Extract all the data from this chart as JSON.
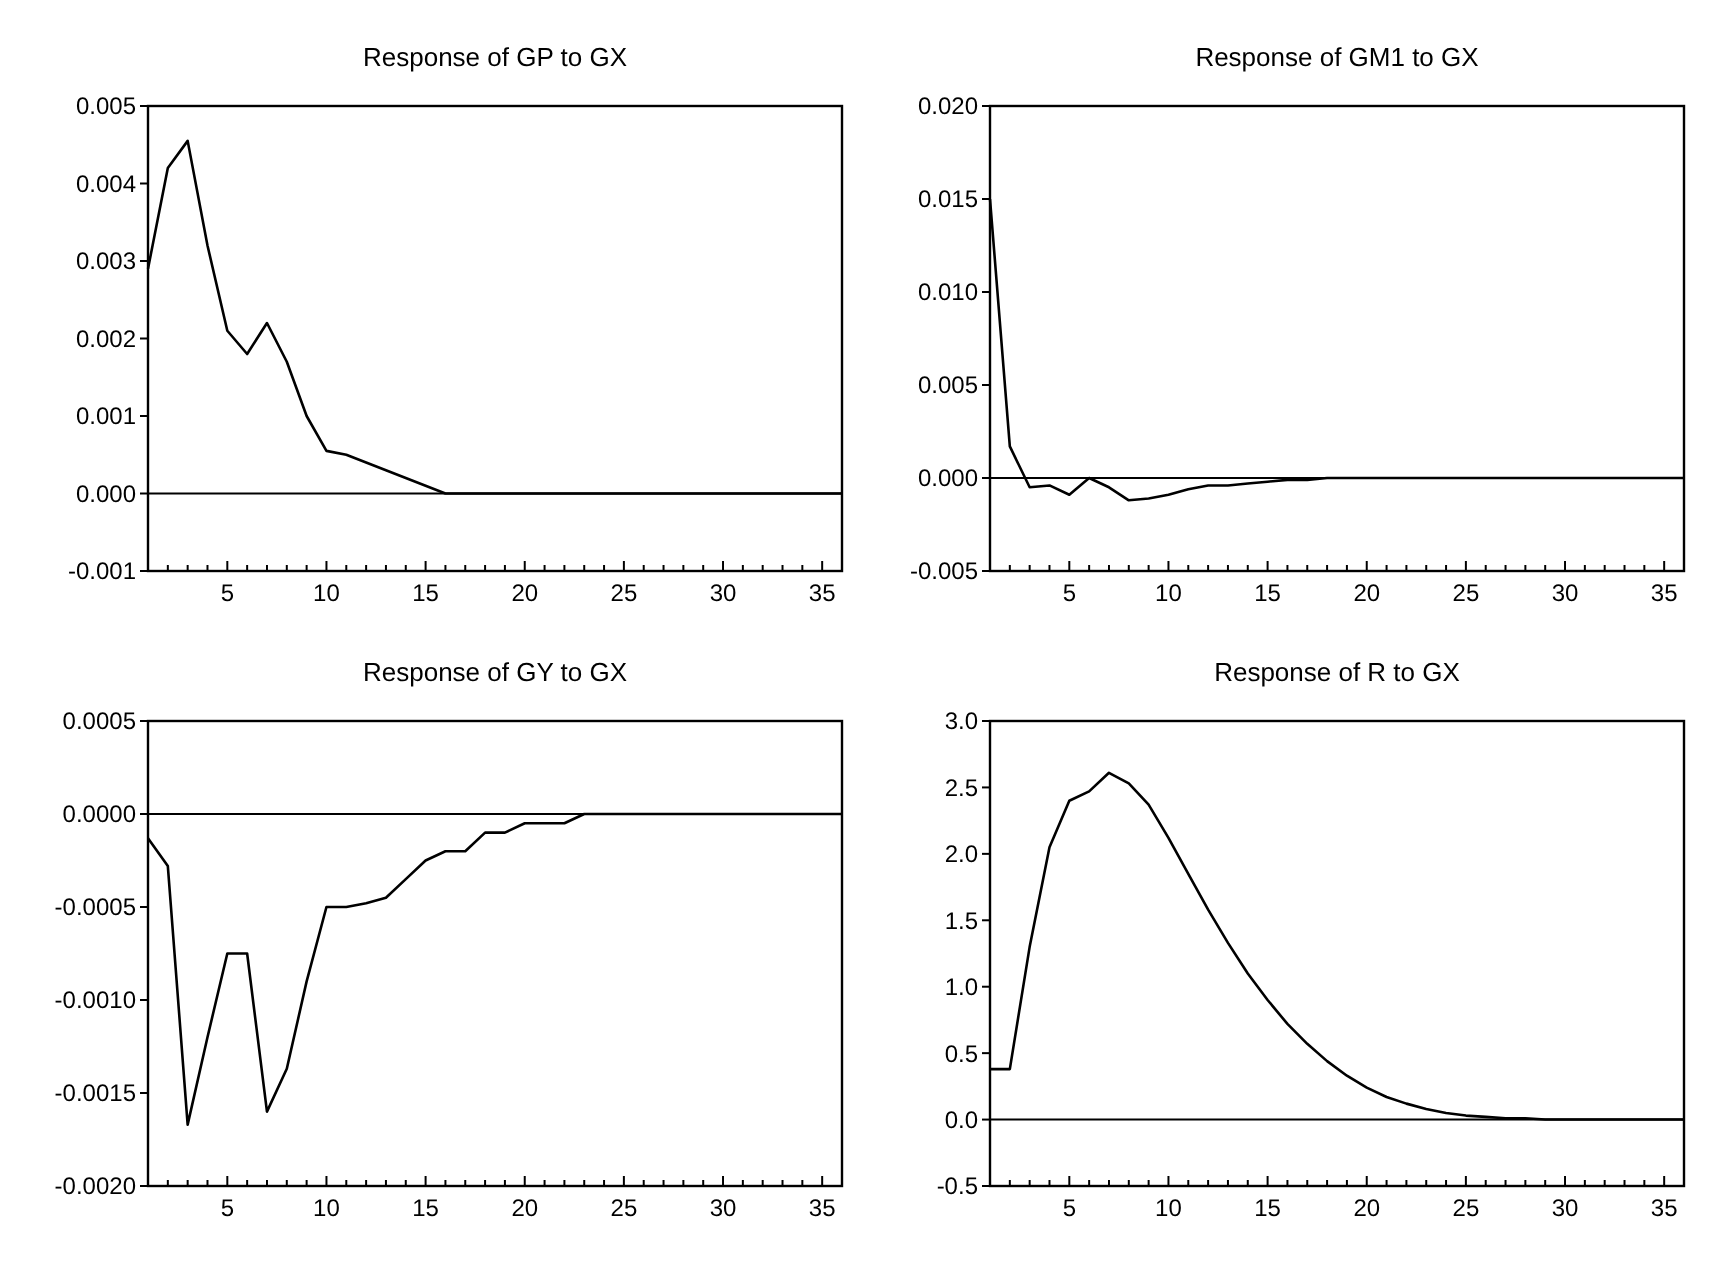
{
  "chart_data": [
    {
      "type": "line",
      "title": "Response of GP to GX",
      "x": [
        1,
        2,
        3,
        4,
        5,
        6,
        7,
        8,
        9,
        10,
        11,
        12,
        13,
        14,
        15,
        16,
        17,
        18,
        19,
        20,
        21,
        22,
        23,
        24,
        25,
        26,
        27,
        28,
        29,
        30,
        31,
        32,
        33,
        34,
        35,
        36
      ],
      "series": [
        {
          "color": "#000000",
          "values": [
            0.0029,
            0.0042,
            0.00455,
            0.0032,
            0.0021,
            0.0018,
            0.0022,
            0.0017,
            0.001,
            0.00055,
            0.0005,
            0.0004,
            0.0003,
            0.0002,
            0.0001,
            0,
            0,
            0,
            0,
            0,
            0,
            0,
            0,
            0,
            0,
            0,
            0,
            0,
            0,
            0,
            0,
            0,
            0,
            0,
            0,
            0
          ]
        }
      ],
      "xlim": [
        1,
        36
      ],
      "xticks": [
        {
          "value": 1,
          "label": null
        },
        {
          "value": 2,
          "label": null
        },
        {
          "value": 3,
          "label": null
        },
        {
          "value": 4,
          "label": null
        },
        5,
        {
          "value": 6,
          "label": null
        },
        {
          "value": 7,
          "label": null
        },
        {
          "value": 8,
          "label": null
        },
        {
          "value": 9,
          "label": null
        },
        10,
        {
          "value": 11,
          "label": null
        },
        {
          "value": 12,
          "label": null
        },
        {
          "value": 13,
          "label": null
        },
        {
          "value": 14,
          "label": null
        },
        15,
        {
          "value": 16,
          "label": null
        },
        {
          "value": 17,
          "label": null
        },
        {
          "value": 18,
          "label": null
        },
        {
          "value": 19,
          "label": null
        },
        20,
        {
          "value": 21,
          "label": null
        },
        {
          "value": 22,
          "label": null
        },
        {
          "value": 23,
          "label": null
        },
        {
          "value": 24,
          "label": null
        },
        25,
        {
          "value": 26,
          "label": null
        },
        {
          "value": 27,
          "label": null
        },
        {
          "value": 28,
          "label": null
        },
        {
          "value": 29,
          "label": null
        },
        30,
        {
          "value": 31,
          "label": null
        },
        {
          "value": 32,
          "label": null
        },
        {
          "value": 33,
          "label": null
        },
        {
          "value": 34,
          "label": null
        },
        35,
        {
          "value": 36,
          "label": null
        }
      ],
      "ylim": [
        -0.001,
        0.005
      ],
      "yticks": [
        {
          "value": -0.001,
          "label": "-0.001"
        },
        {
          "value": 0,
          "label": "0.000"
        },
        {
          "value": 0.001,
          "label": "0.001"
        },
        {
          "value": 0.002,
          "label": "0.002"
        },
        {
          "value": 0.003,
          "label": "0.003"
        },
        {
          "value": 0.004,
          "label": "0.004"
        },
        {
          "value": 0.005,
          "label": "0.005"
        }
      ],
      "ref_lines": [
        {
          "axis": "y",
          "value": 0,
          "color": "#000000"
        }
      ],
      "grid": false
    },
    {
      "type": "line",
      "title": "Response of GM1 to GX",
      "x": [
        1,
        2,
        3,
        4,
        5,
        6,
        7,
        8,
        9,
        10,
        11,
        12,
        13,
        14,
        15,
        16,
        17,
        18,
        19,
        20,
        21,
        22,
        23,
        24,
        25,
        26,
        27,
        28,
        29,
        30,
        31,
        32,
        33,
        34,
        35,
        36
      ],
      "series": [
        {
          "color": "#000000",
          "values": [
            0.015,
            0.0017,
            -0.0005,
            -0.0004,
            -0.0009,
            0,
            -0.0005,
            -0.0012,
            -0.0011,
            -0.0009,
            -0.0006,
            -0.0004,
            -0.0004,
            -0.0003,
            -0.0002,
            -0.0001,
            -0.0001,
            0,
            0,
            0,
            0,
            0,
            0,
            0,
            0,
            0,
            0,
            0,
            0,
            0,
            0,
            0,
            0,
            0,
            0,
            0
          ]
        }
      ],
      "xlim": [
        1,
        36
      ],
      "xticks": [
        {
          "value": 1,
          "label": null
        },
        {
          "value": 2,
          "label": null
        },
        {
          "value": 3,
          "label": null
        },
        {
          "value": 4,
          "label": null
        },
        5,
        {
          "value": 6,
          "label": null
        },
        {
          "value": 7,
          "label": null
        },
        {
          "value": 8,
          "label": null
        },
        {
          "value": 9,
          "label": null
        },
        10,
        {
          "value": 11,
          "label": null
        },
        {
          "value": 12,
          "label": null
        },
        {
          "value": 13,
          "label": null
        },
        {
          "value": 14,
          "label": null
        },
        15,
        {
          "value": 16,
          "label": null
        },
        {
          "value": 17,
          "label": null
        },
        {
          "value": 18,
          "label": null
        },
        {
          "value": 19,
          "label": null
        },
        20,
        {
          "value": 21,
          "label": null
        },
        {
          "value": 22,
          "label": null
        },
        {
          "value": 23,
          "label": null
        },
        {
          "value": 24,
          "label": null
        },
        25,
        {
          "value": 26,
          "label": null
        },
        {
          "value": 27,
          "label": null
        },
        {
          "value": 28,
          "label": null
        },
        {
          "value": 29,
          "label": null
        },
        30,
        {
          "value": 31,
          "label": null
        },
        {
          "value": 32,
          "label": null
        },
        {
          "value": 33,
          "label": null
        },
        {
          "value": 34,
          "label": null
        },
        35,
        {
          "value": 36,
          "label": null
        }
      ],
      "ylim": [
        -0.005,
        0.02
      ],
      "yticks": [
        {
          "value": -0.005,
          "label": "-0.005"
        },
        {
          "value": 0,
          "label": "0.000"
        },
        {
          "value": 0.005,
          "label": "0.005"
        },
        {
          "value": 0.01,
          "label": "0.010"
        },
        {
          "value": 0.015,
          "label": "0.015"
        },
        {
          "value": 0.02,
          "label": "0.020"
        }
      ],
      "ref_lines": [
        {
          "axis": "y",
          "value": 0,
          "color": "#000000"
        }
      ],
      "grid": false
    },
    {
      "type": "line",
      "title": "Response of GY to GX",
      "x": [
        1,
        2,
        3,
        4,
        5,
        6,
        7,
        8,
        9,
        10,
        11,
        12,
        13,
        14,
        15,
        16,
        17,
        18,
        19,
        20,
        21,
        22,
        23,
        24,
        25,
        26,
        27,
        28,
        29,
        30,
        31,
        32,
        33,
        34,
        35,
        36
      ],
      "series": [
        {
          "color": "#000000",
          "values": [
            -0.00013,
            -0.00028,
            -0.00167,
            -0.0012,
            -0.00075,
            -0.00075,
            -0.0016,
            -0.00137,
            -0.0009,
            -0.0005,
            -0.0005,
            -0.00048,
            -0.00045,
            -0.00035,
            -0.00025,
            -0.0002,
            -0.0002,
            -0.0001,
            -0.0001,
            -5e-05,
            -5e-05,
            -5e-05,
            0,
            0,
            0,
            0,
            0,
            0,
            0,
            0,
            0,
            0,
            0,
            0,
            0,
            0
          ]
        }
      ],
      "xlim": [
        1,
        36
      ],
      "xticks": [
        {
          "value": 1,
          "label": null
        },
        {
          "value": 2,
          "label": null
        },
        {
          "value": 3,
          "label": null
        },
        {
          "value": 4,
          "label": null
        },
        5,
        {
          "value": 6,
          "label": null
        },
        {
          "value": 7,
          "label": null
        },
        {
          "value": 8,
          "label": null
        },
        {
          "value": 9,
          "label": null
        },
        10,
        {
          "value": 11,
          "label": null
        },
        {
          "value": 12,
          "label": null
        },
        {
          "value": 13,
          "label": null
        },
        {
          "value": 14,
          "label": null
        },
        15,
        {
          "value": 16,
          "label": null
        },
        {
          "value": 17,
          "label": null
        },
        {
          "value": 18,
          "label": null
        },
        {
          "value": 19,
          "label": null
        },
        20,
        {
          "value": 21,
          "label": null
        },
        {
          "value": 22,
          "label": null
        },
        {
          "value": 23,
          "label": null
        },
        {
          "value": 24,
          "label": null
        },
        25,
        {
          "value": 26,
          "label": null
        },
        {
          "value": 27,
          "label": null
        },
        {
          "value": 28,
          "label": null
        },
        {
          "value": 29,
          "label": null
        },
        30,
        {
          "value": 31,
          "label": null
        },
        {
          "value": 32,
          "label": null
        },
        {
          "value": 33,
          "label": null
        },
        {
          "value": 34,
          "label": null
        },
        35,
        {
          "value": 36,
          "label": null
        }
      ],
      "ylim": [
        -0.002,
        0.0005
      ],
      "yticks": [
        {
          "value": -0.002,
          "label": "-0.0020"
        },
        {
          "value": -0.0015,
          "label": "-0.0015"
        },
        {
          "value": -0.001,
          "label": "-0.0010"
        },
        {
          "value": -0.0005,
          "label": "-0.0005"
        },
        {
          "value": 0,
          "label": "0.0000"
        },
        {
          "value": 0.0005,
          "label": "0.0005"
        }
      ],
      "ref_lines": [
        {
          "axis": "y",
          "value": 0,
          "color": "#000000"
        }
      ],
      "grid": false
    },
    {
      "type": "line",
      "title": "Response of R to GX",
      "x": [
        1,
        2,
        3,
        4,
        5,
        6,
        7,
        8,
        9,
        10,
        11,
        12,
        13,
        14,
        15,
        16,
        17,
        18,
        19,
        20,
        21,
        22,
        23,
        24,
        25,
        26,
        27,
        28,
        29,
        30,
        31,
        32,
        33,
        34,
        35,
        36
      ],
      "series": [
        {
          "color": "#000000",
          "values": [
            0.38,
            0.38,
            1.3,
            2.05,
            2.4,
            2.47,
            2.61,
            2.53,
            2.37,
            2.12,
            1.85,
            1.58,
            1.33,
            1.1,
            0.9,
            0.72,
            0.57,
            0.44,
            0.33,
            0.24,
            0.17,
            0.12,
            0.08,
            0.05,
            0.03,
            0.02,
            0.01,
            0.01,
            0,
            0,
            0,
            0,
            0,
            0,
            0,
            0
          ]
        }
      ],
      "xlim": [
        1,
        36
      ],
      "xticks": [
        {
          "value": 1,
          "label": null
        },
        {
          "value": 2,
          "label": null
        },
        {
          "value": 3,
          "label": null
        },
        {
          "value": 4,
          "label": null
        },
        5,
        {
          "value": 6,
          "label": null
        },
        {
          "value": 7,
          "label": null
        },
        {
          "value": 8,
          "label": null
        },
        {
          "value": 9,
          "label": null
        },
        10,
        {
          "value": 11,
          "label": null
        },
        {
          "value": 12,
          "label": null
        },
        {
          "value": 13,
          "label": null
        },
        {
          "value": 14,
          "label": null
        },
        15,
        {
          "value": 16,
          "label": null
        },
        {
          "value": 17,
          "label": null
        },
        {
          "value": 18,
          "label": null
        },
        {
          "value": 19,
          "label": null
        },
        20,
        {
          "value": 21,
          "label": null
        },
        {
          "value": 22,
          "label": null
        },
        {
          "value": 23,
          "label": null
        },
        {
          "value": 24,
          "label": null
        },
        25,
        {
          "value": 26,
          "label": null
        },
        {
          "value": 27,
          "label": null
        },
        {
          "value": 28,
          "label": null
        },
        {
          "value": 29,
          "label": null
        },
        30,
        {
          "value": 31,
          "label": null
        },
        {
          "value": 32,
          "label": null
        },
        {
          "value": 33,
          "label": null
        },
        {
          "value": 34,
          "label": null
        },
        35,
        {
          "value": 36,
          "label": null
        }
      ],
      "ylim": [
        -0.5,
        3
      ],
      "yticks": [
        {
          "value": -0.5,
          "label": "-0.5"
        },
        {
          "value": 0,
          "label": "0.0"
        },
        {
          "value": 0.5,
          "label": "0.5"
        },
        {
          "value": 1,
          "label": "1.0"
        },
        {
          "value": 1.5,
          "label": "1.5"
        },
        {
          "value": 2,
          "label": "2.0"
        },
        {
          "value": 2.5,
          "label": "2.5"
        },
        {
          "value": 3,
          "label": "3.0"
        }
      ],
      "ref_lines": [
        {
          "axis": "y",
          "value": 0,
          "color": "#000000"
        }
      ],
      "grid": false
    }
  ]
}
